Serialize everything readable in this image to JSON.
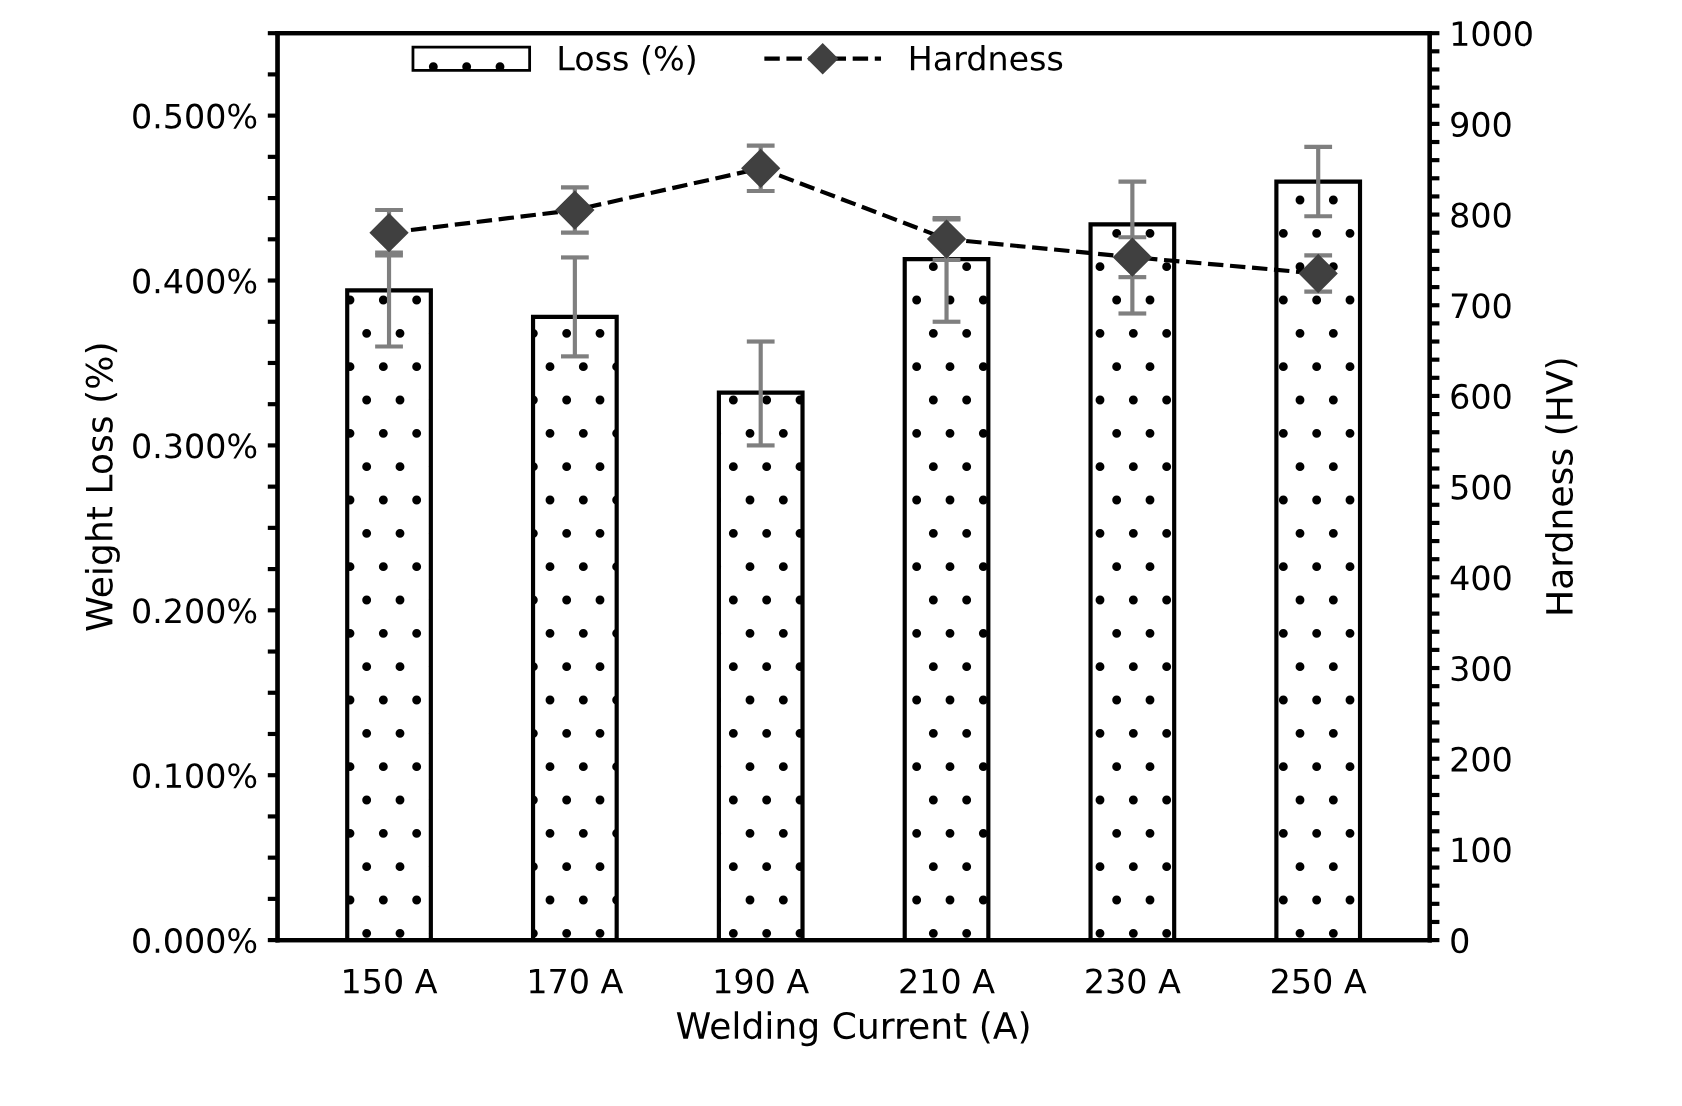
{
  "chart_data": {
    "type": "bar",
    "xlabel": "Welding Current (A)",
    "ylabel": "Weight Loss (%)",
    "y2label": "Hardness (HV)",
    "categories": [
      "150 A",
      "170 A",
      "190 A",
      "210 A",
      "230 A",
      "250 A"
    ],
    "series": [
      {
        "name": "Loss (%)",
        "type": "bar",
        "color": "#000000",
        "values": [
          0.394,
          0.378,
          0.332,
          0.413,
          0.434,
          0.46
        ],
        "errors": [
          [
            0.36,
            0.417
          ],
          [
            0.354,
            0.414
          ],
          [
            0.3,
            0.363
          ],
          [
            0.375,
            0.437
          ],
          [
            0.38,
            0.46
          ],
          [
            0.439,
            0.481
          ]
        ]
      },
      {
        "name": "Hardness",
        "type": "line",
        "axis": "y2",
        "color": "#404040",
        "marker": "diamond",
        "line_style": "dashed",
        "values": [
          780,
          805,
          851,
          773,
          753,
          735
        ],
        "errors": [
          25,
          25,
          25,
          23,
          22,
          20
        ]
      }
    ],
    "ylim": [
      0,
      0.55
    ],
    "yticks": [
      {
        "value": 0,
        "label": "0.000%"
      },
      {
        "value": 0.025,
        "label": null
      },
      {
        "value": 0.05,
        "label": null
      },
      {
        "value": 0.075,
        "label": null
      },
      {
        "value": 0.1,
        "label": "0.100%"
      },
      {
        "value": 0.125,
        "label": null
      },
      {
        "value": 0.15,
        "label": null
      },
      {
        "value": 0.175,
        "label": null
      },
      {
        "value": 0.2,
        "label": "0.200%"
      },
      {
        "value": 0.225,
        "label": null
      },
      {
        "value": 0.25,
        "label": null
      },
      {
        "value": 0.275,
        "label": null
      },
      {
        "value": 0.3,
        "label": "0.300%"
      },
      {
        "value": 0.325,
        "label": null
      },
      {
        "value": 0.35,
        "label": null
      },
      {
        "value": 0.375,
        "label": null
      },
      {
        "value": 0.4,
        "label": "0.400%"
      },
      {
        "value": 0.425,
        "label": null
      },
      {
        "value": 0.45,
        "label": null
      },
      {
        "value": 0.475,
        "label": null
      },
      {
        "value": 0.5,
        "label": "0.500%"
      },
      {
        "value": 0.525,
        "label": null
      },
      {
        "value": 0.55,
        "label": null
      }
    ],
    "y2lim": [
      0,
      1000
    ],
    "y2ticks": [
      0,
      {
        "value": 20,
        "label": null
      },
      {
        "value": 40,
        "label": null
      },
      {
        "value": 60,
        "label": null
      },
      {
        "value": 80,
        "label": null
      },
      100,
      {
        "value": 120,
        "label": null
      },
      {
        "value": 140,
        "label": null
      },
      {
        "value": 160,
        "label": null
      },
      {
        "value": 180,
        "label": null
      },
      200,
      {
        "value": 220,
        "label": null
      },
      {
        "value": 240,
        "label": null
      },
      {
        "value": 260,
        "label": null
      },
      {
        "value": 280,
        "label": null
      },
      300,
      {
        "value": 320,
        "label": null
      },
      {
        "value": 340,
        "label": null
      },
      {
        "value": 360,
        "label": null
      },
      {
        "value": 380,
        "label": null
      },
      400,
      {
        "value": 420,
        "label": null
      },
      {
        "value": 440,
        "label": null
      },
      {
        "value": 460,
        "label": null
      },
      {
        "value": 480,
        "label": null
      },
      500,
      {
        "value": 520,
        "label": null
      },
      {
        "value": 540,
        "label": null
      },
      {
        "value": 560,
        "label": null
      },
      {
        "value": 580,
        "label": null
      },
      600,
      {
        "value": 620,
        "label": null
      },
      {
        "value": 640,
        "label": null
      },
      {
        "value": 660,
        "label": null
      },
      {
        "value": 680,
        "label": null
      },
      700,
      {
        "value": 720,
        "label": null
      },
      {
        "value": 740,
        "label": null
      },
      {
        "value": 760,
        "label": null
      },
      {
        "value": 780,
        "label": null
      },
      800,
      {
        "value": 820,
        "label": null
      },
      {
        "value": 840,
        "label": null
      },
      {
        "value": 860,
        "label": null
      },
      {
        "value": 880,
        "label": null
      },
      900,
      {
        "value": 920,
        "label": null
      },
      {
        "value": 940,
        "label": null
      },
      {
        "value": 960,
        "label": null
      },
      {
        "value": 980,
        "label": null
      },
      1000
    ],
    "grid": false,
    "legend": "top"
  }
}
